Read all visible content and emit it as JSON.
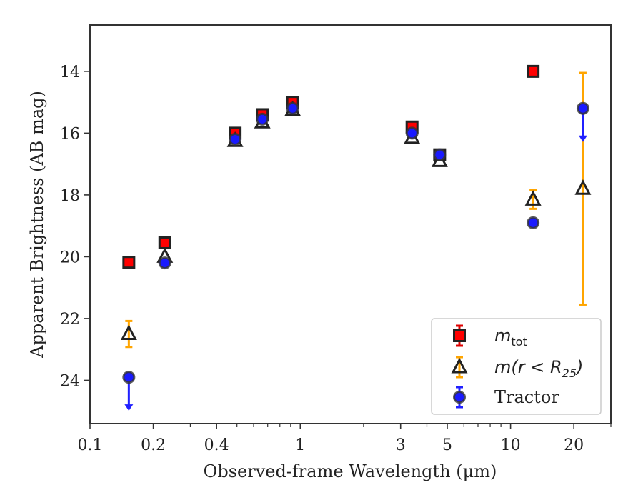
{
  "chart_data": {
    "type": "scatter",
    "xlabel": "Observed-frame Wavelength (μm)",
    "ylabel": "Apparent Brightness (AB mag)",
    "xscale": "log",
    "xlim": [
      0.1,
      30
    ],
    "ylim": [
      25.4,
      12.5
    ],
    "y_inverted": true,
    "grid": false,
    "legend_position": "lower-right",
    "x_ticks": [
      {
        "value": 0.1,
        "label": "0.1"
      },
      {
        "value": 0.2,
        "label": "0.2"
      },
      {
        "value": 0.4,
        "label": "0.4"
      },
      {
        "value": 1,
        "label": "1"
      },
      {
        "value": 3,
        "label": "3"
      },
      {
        "value": 5,
        "label": "5"
      },
      {
        "value": 10,
        "label": "10"
      },
      {
        "value": 20,
        "label": "20"
      }
    ],
    "y_ticks": [
      {
        "value": 14,
        "label": "14"
      },
      {
        "value": 16,
        "label": "16"
      },
      {
        "value": 18,
        "label": "18"
      },
      {
        "value": 20,
        "label": "20"
      },
      {
        "value": 22,
        "label": "22"
      },
      {
        "value": 24,
        "label": "24"
      }
    ],
    "series": [
      {
        "name": "m_tot",
        "legend_main": "m",
        "legend_sub": "tot",
        "marker": "square",
        "color": "#ff0000",
        "edge_color": "#222222",
        "errorbar_color": "#dd0000",
        "points": [
          {
            "x": 0.153,
            "y": 20.18,
            "err": 0
          },
          {
            "x": 0.227,
            "y": 19.55,
            "err": 0
          },
          {
            "x": 0.49,
            "y": 16.0,
            "err": 0
          },
          {
            "x": 0.66,
            "y": 15.4,
            "err": 0
          },
          {
            "x": 0.92,
            "y": 15.0,
            "err": 0
          },
          {
            "x": 3.4,
            "y": 15.8,
            "err": 0
          },
          {
            "x": 4.6,
            "y": 16.7,
            "err": 0
          },
          {
            "x": 12.8,
            "y": 14.0,
            "err": 0
          }
        ]
      },
      {
        "name": "m(r < R_25)",
        "legend_main": "m(r < R",
        "legend_sub": "25",
        "legend_end": ")",
        "marker": "triangle",
        "color": "none",
        "edge_color": "#222222",
        "errorbar_color": "#ffa500",
        "points": [
          {
            "x": 0.153,
            "y": 22.5,
            "err": 0.42
          },
          {
            "x": 0.227,
            "y": 20.0,
            "err": 0
          },
          {
            "x": 0.49,
            "y": 16.25,
            "err": 0
          },
          {
            "x": 0.66,
            "y": 15.65,
            "err": 0
          },
          {
            "x": 0.92,
            "y": 15.25,
            "err": 0
          },
          {
            "x": 3.4,
            "y": 16.15,
            "err": 0
          },
          {
            "x": 4.6,
            "y": 16.9,
            "err": 0
          },
          {
            "x": 12.8,
            "y": 18.15,
            "err": 0.3
          },
          {
            "x": 22.1,
            "y": 17.8,
            "err": 3.75
          }
        ]
      },
      {
        "name": "Tractor",
        "legend_main": "Tractor",
        "marker": "circle",
        "color": "#1a1aff",
        "edge_color": "#333333",
        "errorbar_color": "#2020ff",
        "points": [
          {
            "x": 0.153,
            "y": 23.9,
            "err": 0,
            "upper_limit": true
          },
          {
            "x": 0.227,
            "y": 20.2,
            "err": 0
          },
          {
            "x": 0.49,
            "y": 16.2,
            "err": 0
          },
          {
            "x": 0.66,
            "y": 15.55,
            "err": 0
          },
          {
            "x": 0.92,
            "y": 15.2,
            "err": 0
          },
          {
            "x": 3.4,
            "y": 16.0,
            "err": 0
          },
          {
            "x": 4.6,
            "y": 16.7,
            "err": 0
          },
          {
            "x": 12.8,
            "y": 18.9,
            "err": 0
          },
          {
            "x": 22.1,
            "y": 15.2,
            "err": 0,
            "upper_limit": true
          }
        ]
      }
    ]
  }
}
